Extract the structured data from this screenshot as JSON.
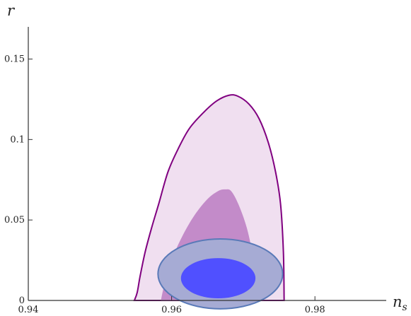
{
  "chart_data": {
    "type": "area",
    "title": "",
    "xlabel": "n",
    "xlabel_sub": "s",
    "ylabel": "r",
    "xlim": [
      0.94,
      0.99
    ],
    "ylim": [
      0,
      0.17
    ],
    "grid": false,
    "x_ticks": [
      {
        "value": 0.94,
        "label": "0.94"
      },
      {
        "value": 0.96,
        "label": "0.96"
      },
      {
        "value": 0.98,
        "label": "0.98"
      }
    ],
    "y_ticks": [
      {
        "value": 0,
        "label": "0"
      },
      {
        "value": 0.05,
        "label": "0.05"
      },
      {
        "value": 0.1,
        "label": "0.1"
      },
      {
        "value": 0.15,
        "label": "0.15"
      }
    ],
    "series": [
      {
        "id": "purple-outer",
        "fill": "#f0dff0",
        "stroke": "#800080",
        "points": [
          [
            0.9548,
            0
          ],
          [
            0.9552,
            0.005
          ],
          [
            0.9556,
            0.015
          ],
          [
            0.9563,
            0.03
          ],
          [
            0.9572,
            0.045
          ],
          [
            0.9582,
            0.06
          ],
          [
            0.9595,
            0.08
          ],
          [
            0.961,
            0.095
          ],
          [
            0.9625,
            0.107
          ],
          [
            0.9645,
            0.117
          ],
          [
            0.9663,
            0.124
          ],
          [
            0.968,
            0.1275
          ],
          [
            0.9692,
            0.127
          ],
          [
            0.9708,
            0.122
          ],
          [
            0.9722,
            0.113
          ],
          [
            0.9735,
            0.098
          ],
          [
            0.9745,
            0.08
          ],
          [
            0.9752,
            0.06
          ],
          [
            0.9756,
            0.03
          ],
          [
            0.9757,
            0
          ]
        ]
      },
      {
        "id": "purple-inner",
        "fill": "#c38bc9",
        "stroke": "none",
        "points": [
          [
            0.9585,
            0
          ],
          [
            0.959,
            0.01
          ],
          [
            0.96,
            0.025
          ],
          [
            0.9615,
            0.04
          ],
          [
            0.9632,
            0.053
          ],
          [
            0.965,
            0.063
          ],
          [
            0.9665,
            0.068
          ],
          [
            0.9675,
            0.069
          ],
          [
            0.9683,
            0.068
          ],
          [
            0.9693,
            0.06
          ],
          [
            0.9705,
            0.045
          ],
          [
            0.9715,
            0.025
          ],
          [
            0.9722,
            0.01
          ],
          [
            0.9725,
            0
          ]
        ]
      },
      {
        "id": "blue-outer",
        "fill": "#a6abd4",
        "stroke": "#5a7ab8",
        "cx": 0.9668,
        "cy": 0.0165,
        "rx": 0.0087,
        "ry": 0.0217
      },
      {
        "id": "blue-inner",
        "fill": "#5050ff",
        "stroke": "none",
        "cx": 0.9665,
        "cy": 0.0138,
        "rx": 0.0052,
        "ry": 0.0125
      }
    ]
  }
}
